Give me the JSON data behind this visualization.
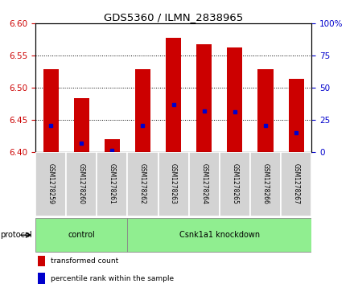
{
  "title": "GDS5360 / ILMN_2838965",
  "samples": [
    "GSM1278259",
    "GSM1278260",
    "GSM1278261",
    "GSM1278262",
    "GSM1278263",
    "GSM1278264",
    "GSM1278265",
    "GSM1278266",
    "GSM1278267"
  ],
  "bar_tops": [
    6.529,
    6.484,
    6.42,
    6.529,
    6.578,
    6.567,
    6.563,
    6.529,
    6.514
  ],
  "base": 6.4,
  "blue_values": [
    6.441,
    6.414,
    6.402,
    6.441,
    6.474,
    6.464,
    6.462,
    6.441,
    6.43
  ],
  "ylim_left": [
    6.4,
    6.6
  ],
  "ylim_right": [
    0,
    100
  ],
  "yticks_left": [
    6.4,
    6.45,
    6.5,
    6.55,
    6.6
  ],
  "yticks_right": [
    0,
    25,
    50,
    75,
    100
  ],
  "bar_color": "#cc0000",
  "blue_color": "#0000cc",
  "control_count": 3,
  "knockdown_count": 6,
  "protocol_label": "protocol",
  "legend_items": [
    {
      "label": "transformed count",
      "color": "#cc0000"
    },
    {
      "label": "percentile rank within the sample",
      "color": "#0000cc"
    }
  ],
  "bg_color": "#ffffff",
  "tick_area_color": "#d3d3d3",
  "protocol_color": "#90ee90",
  "bar_width": 0.5
}
